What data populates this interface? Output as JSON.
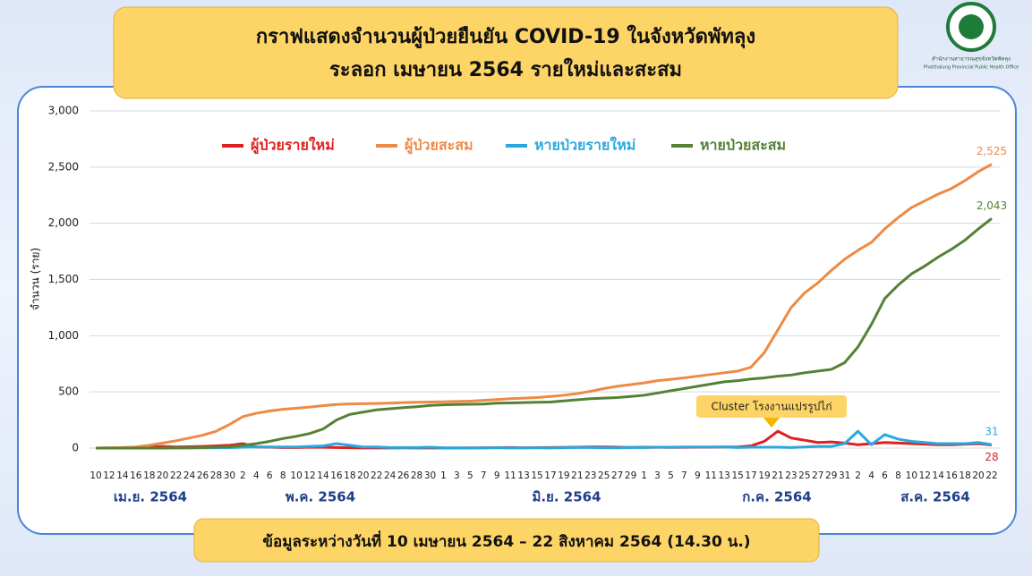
{
  "chart_data": {
    "type": "line",
    "title": [
      "กราฟแสดงจำนวนผู้ป่วยยืนยัน COVID-19 ในจังหวัดพัทลุง",
      "ระลอก เมษายน 2564 รายใหม่และสะสม"
    ],
    "y_label": "จำนวน (ราย)",
    "logo_text": [
      "สำนักงานสาธารณสุขจังหวัดพัทลุง",
      "Phatthalung Provincial Public Health Office"
    ],
    "annotation": "Cluster โรงงานแปรรูปไก่",
    "footer": "ข้อมูลระหว่างวันที่ 10 เมษายน 2564 – 22 สิงหาคม 2564 (14.30 น.)",
    "month_labels": [
      "เม.ย. 2564",
      "พ.ค. 2564",
      "มิ.ย. 2564",
      "ก.ค. 2564",
      "ส.ค. 2564"
    ],
    "categories": [
      "10",
      "12",
      "14",
      "16",
      "18",
      "20",
      "22",
      "24",
      "26",
      "28",
      "30",
      "2",
      "4",
      "6",
      "8",
      "10",
      "12",
      "14",
      "16",
      "18",
      "20",
      "22",
      "24",
      "26",
      "28",
      "30",
      "1",
      "3",
      "5",
      "7",
      "9",
      "11",
      "13",
      "15",
      "17",
      "19",
      "21",
      "23",
      "25",
      "27",
      "29",
      "1",
      "3",
      "5",
      "7",
      "9",
      "11",
      "13",
      "15",
      "17",
      "19",
      "21",
      "23",
      "25",
      "27",
      "29",
      "31",
      "2",
      "4",
      "6",
      "8",
      "10",
      "12",
      "14",
      "16",
      "18",
      "20",
      "22"
    ],
    "ylim": [
      0,
      3000
    ],
    "yticks": [
      0,
      500,
      {
        "value": 1000,
        "label": "1,000"
      },
      {
        "value": 1500,
        "label": "1,500"
      },
      {
        "value": 2000,
        "label": "2,000"
      },
      {
        "value": 2500,
        "label": "2,500"
      },
      {
        "value": 3000,
        "label": "3,000"
      }
    ],
    "grid": true,
    "series": [
      {
        "name": "ผู้ป่วยรายใหม่",
        "color": "#e02020",
        "values": [
          0,
          1,
          2,
          3,
          8,
          15,
          10,
          12,
          15,
          20,
          25,
          40,
          10,
          8,
          5,
          5,
          8,
          7,
          5,
          3,
          1,
          1,
          1,
          2,
          1,
          1,
          1,
          1,
          2,
          3,
          4,
          5,
          3,
          4,
          5,
          6,
          8,
          10,
          10,
          8,
          6,
          8,
          7,
          6,
          7,
          8,
          8,
          10,
          10,
          20,
          60,
          150,
          90,
          70,
          50,
          55,
          45,
          30,
          40,
          50,
          45,
          40,
          35,
          30,
          30,
          35,
          40,
          28
        ]
      },
      {
        "name": "ผู้ป่วยสะสม",
        "color": "#ed8a45",
        "values": [
          0,
          2,
          5,
          10,
          25,
          45,
          65,
          90,
          115,
          150,
          210,
          280,
          310,
          330,
          345,
          355,
          365,
          378,
          388,
          393,
          395,
          397,
          400,
          405,
          408,
          410,
          412,
          415,
          418,
          425,
          432,
          440,
          445,
          450,
          460,
          470,
          485,
          505,
          530,
          550,
          565,
          580,
          600,
          612,
          625,
          640,
          655,
          670,
          685,
          720,
          850,
          1050,
          1250,
          1380,
          1470,
          1580,
          1680,
          1760,
          1830,
          1950,
          2050,
          2140,
          2200,
          2260,
          2310,
          2380,
          2460,
          2525
        ],
        "value_labels": [
          null,
          null,
          null,
          null,
          null,
          null,
          null,
          null,
          null,
          null,
          null,
          null,
          null,
          null,
          null,
          null,
          null,
          null,
          null,
          null,
          null,
          null,
          null,
          null,
          null,
          null,
          null,
          null,
          null,
          null,
          null,
          null,
          null,
          null,
          null,
          null,
          null,
          null,
          null,
          null,
          null,
          null,
          null,
          null,
          null,
          null,
          null,
          null,
          null,
          null,
          null,
          null,
          null,
          null,
          null,
          null,
          null,
          null,
          null,
          null,
          null,
          null,
          null,
          null,
          null,
          null,
          null,
          "2,525"
        ]
      },
      {
        "name": "หายป่วยรายใหม่",
        "color": "#29a8e0",
        "values": [
          0,
          0,
          0,
          0,
          0,
          0,
          1,
          1,
          2,
          3,
          4,
          8,
          10,
          10,
          10,
          10,
          15,
          20,
          40,
          25,
          10,
          10,
          5,
          5,
          5,
          8,
          3,
          2,
          1,
          1,
          3,
          1,
          2,
          2,
          1,
          3,
          5,
          5,
          3,
          2,
          5,
          5,
          8,
          8,
          10,
          10,
          10,
          10,
          5,
          8,
          8,
          8,
          5,
          10,
          15,
          15,
          40,
          150,
          30,
          120,
          80,
          60,
          50,
          40,
          40,
          40,
          50,
          31
        ]
      },
      {
        "name": "หายป่วยสะสม",
        "color": "#548235",
        "values": [
          0,
          0,
          0,
          0,
          0,
          1,
          2,
          3,
          5,
          8,
          12,
          25,
          40,
          60,
          85,
          105,
          130,
          170,
          250,
          300,
          320,
          340,
          350,
          360,
          368,
          380,
          385,
          388,
          390,
          392,
          400,
          402,
          405,
          408,
          410,
          420,
          430,
          440,
          445,
          450,
          460,
          470,
          490,
          510,
          530,
          550,
          570,
          590,
          600,
          615,
          625,
          640,
          650,
          670,
          685,
          700,
          760,
          900,
          1100,
          1330,
          1450,
          1550,
          1620,
          1700,
          1770,
          1850,
          1950,
          2043
        ],
        "value_labels": [
          null,
          null,
          null,
          null,
          null,
          null,
          null,
          null,
          null,
          null,
          null,
          null,
          null,
          null,
          null,
          null,
          null,
          null,
          null,
          null,
          null,
          null,
          null,
          null,
          null,
          null,
          null,
          null,
          null,
          null,
          null,
          null,
          null,
          null,
          null,
          null,
          null,
          null,
          null,
          null,
          null,
          null,
          null,
          null,
          null,
          null,
          null,
          null,
          null,
          null,
          null,
          null,
          null,
          null,
          null,
          null,
          null,
          null,
          null,
          null,
          null,
          null,
          null,
          null,
          null,
          null,
          null,
          "2,043"
        ]
      }
    ]
  }
}
